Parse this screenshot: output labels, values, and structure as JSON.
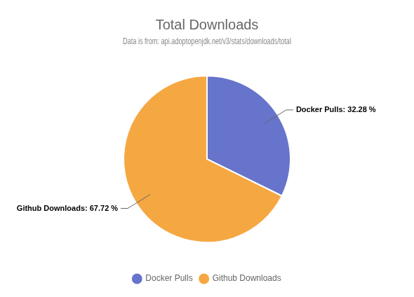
{
  "chart_data": {
    "type": "pie",
    "title": "Total Downloads",
    "subtitle": "Data is from: api.adoptopenjdk.net/v3/stats/downloads/total",
    "categories": [
      "Docker Pulls",
      "Github Downloads"
    ],
    "values": [
      32.28,
      67.72
    ],
    "colors": [
      "#6674cc",
      "#f5a742"
    ],
    "data_labels": true,
    "value_labels": [
      "Docker Pulls: 32.28 %",
      "Github Downloads: 67.72 %"
    ],
    "legend": "bottom"
  }
}
